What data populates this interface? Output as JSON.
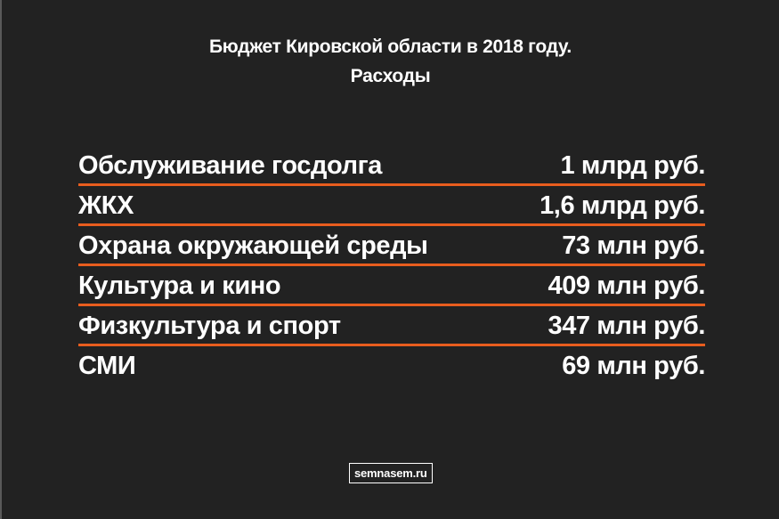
{
  "title": {
    "line1": "Бюджет Кировской области в 2018 году.",
    "line2": "Расходы"
  },
  "rows": [
    {
      "label": "Обслуживание госдолга",
      "value": "1 млрд руб."
    },
    {
      "label": "ЖКХ",
      "value": "1,6 млрд руб."
    },
    {
      "label": "Охрана окружающей среды",
      "value": "73 млн руб."
    },
    {
      "label": "Культура и кино",
      "value": "409 млн руб."
    },
    {
      "label": "Физкультура и спорт",
      "value": "347 млн руб."
    },
    {
      "label": "СМИ",
      "value": "69 млн руб."
    }
  ],
  "source": "semnasem.ru",
  "colors": {
    "background": "#222222",
    "accent_rule": "#e85d1e",
    "text": "#ffffff"
  }
}
